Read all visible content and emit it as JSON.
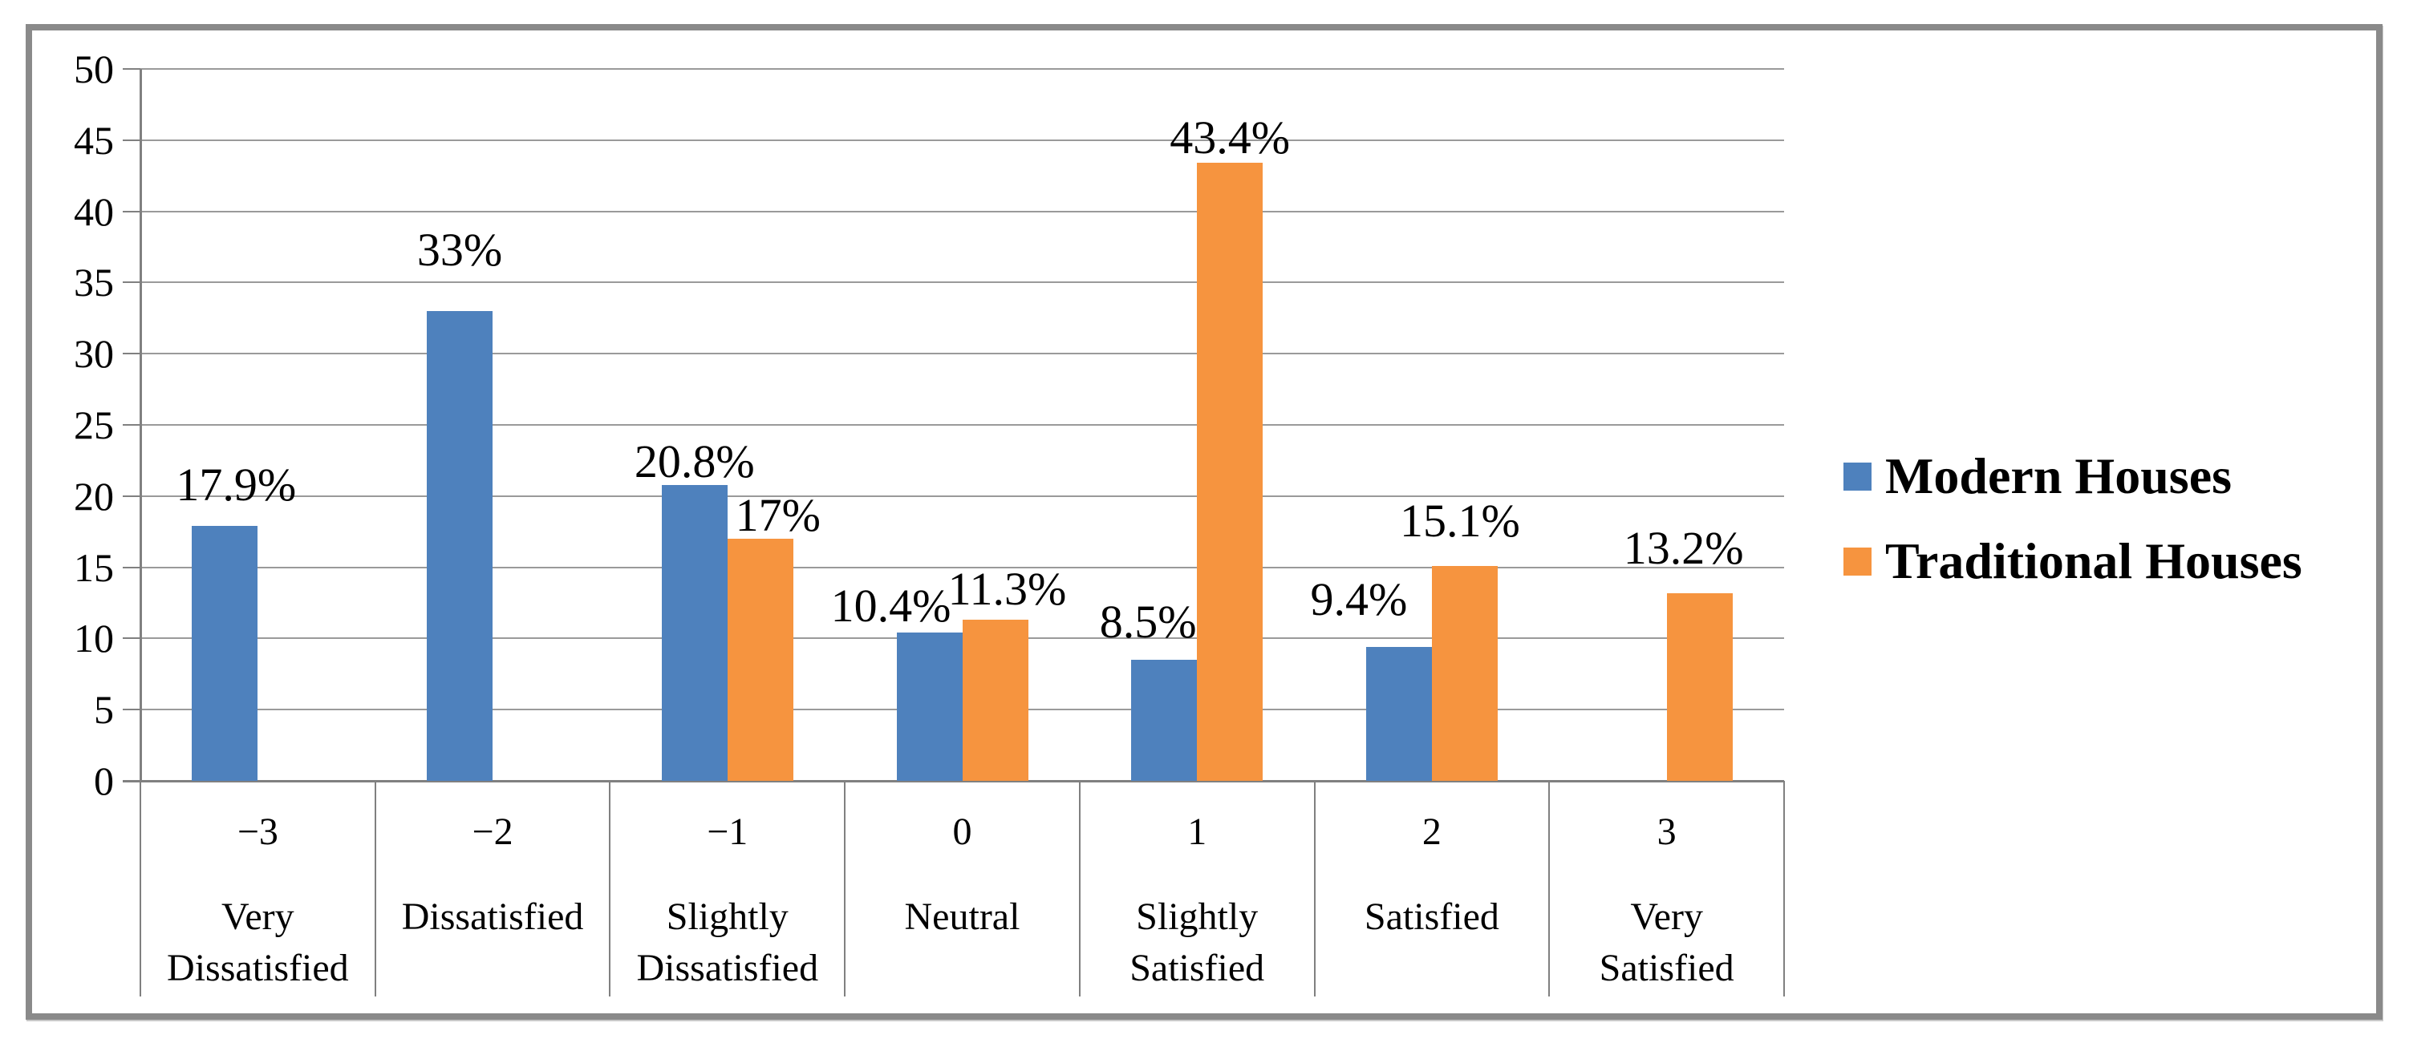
{
  "chart_data": {
    "type": "bar",
    "title": "",
    "xlabel": "",
    "ylabel": "",
    "ylim": [
      0,
      50
    ],
    "ytick_step": 5,
    "yticks": [
      "0",
      "5",
      "10",
      "15",
      "20",
      "25",
      "30",
      "35",
      "40",
      "45",
      "50"
    ],
    "grid": true,
    "legend_position": "right",
    "categories": [
      {
        "code": "−3",
        "label": "Very Dissatisfied",
        "label_lines": [
          "Very",
          "Dissatisfied"
        ]
      },
      {
        "code": "−2",
        "label": "Dissatisfied",
        "label_lines": [
          "Dissatisfied"
        ]
      },
      {
        "code": "−1",
        "label": "Slightly Dissatisfied",
        "label_lines": [
          "Slightly",
          "Dissatisfied"
        ]
      },
      {
        "code": "0",
        "label": "Neutral",
        "label_lines": [
          "Neutral"
        ]
      },
      {
        "code": "1",
        "label": "Slightly Satisfied",
        "label_lines": [
          "Slightly",
          "Satisfied"
        ]
      },
      {
        "code": "2",
        "label": "Satisfied",
        "label_lines": [
          "Satisfied"
        ]
      },
      {
        "code": "3",
        "label": "Very Satisfied",
        "label_lines": [
          "Very",
          "Satisfied"
        ]
      }
    ],
    "series": [
      {
        "name": "Modern Houses",
        "color": "#4E81BD",
        "values": [
          17.9,
          33,
          20.8,
          10.4,
          8.5,
          9.4,
          null
        ],
        "labels": [
          "17.9%",
          "33%",
          "20.8%",
          "10.4%",
          "8.5%",
          "9.4%",
          null
        ]
      },
      {
        "name": "Traditional Houses",
        "color": "#F6943F",
        "values": [
          null,
          null,
          17,
          11.3,
          43.4,
          15.1,
          13.2
        ],
        "labels": [
          null,
          null,
          "17%",
          "11.3%",
          "43.4%",
          "15.1%",
          "13.2%"
        ]
      }
    ]
  },
  "colors": {
    "modern_houses": "#4E81BD",
    "traditional_houses": "#F6943F",
    "gridline": "#9A9A9A",
    "axis": "#808080",
    "frame": "#8A8A8A",
    "text": "#000000"
  }
}
